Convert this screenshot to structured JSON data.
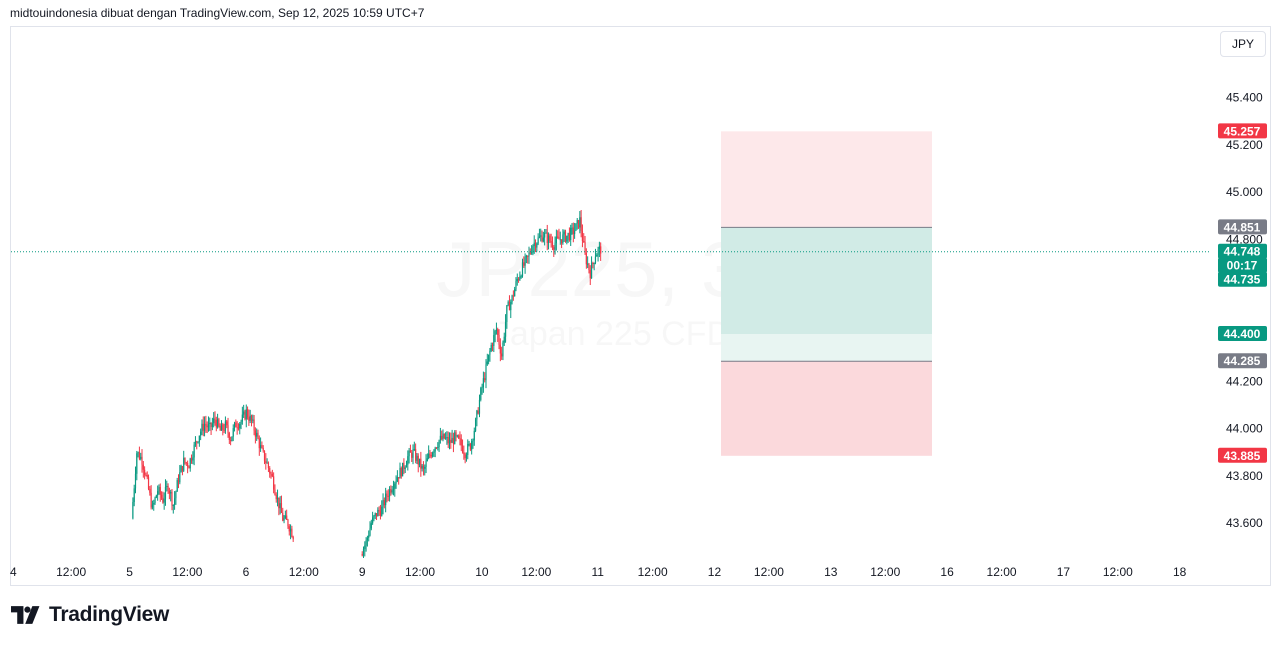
{
  "header": {
    "attribution": "midtouindonesia dibuat dengan TradingView.com, Sep 12, 2025 10:59 UTC+7"
  },
  "currency_button": {
    "label": "JPY"
  },
  "watermark": {
    "symbol": "JP225, 30",
    "description": "Japan 225 CFD"
  },
  "brand": {
    "name": "TradingView"
  },
  "colors": {
    "up": "#089981",
    "down": "#f23645",
    "grid_text": "#131722",
    "profit_zone": "#d1ebe6",
    "loss_zone": "#fbd9dc",
    "gray_label": "#787b86"
  },
  "chart_data": {
    "type": "candlestick",
    "timeframe": "30",
    "x_tick_labels": [
      "4",
      "12:00",
      "5",
      "12:00",
      "6",
      "12:00",
      "9",
      "12:00",
      "10",
      "12:00",
      "11",
      "12:00",
      "12",
      "12:00",
      "13",
      "12:00",
      "16",
      "12:00",
      "17",
      "12:00",
      "18"
    ],
    "y_tick_labels": [
      "45.400",
      "45.200",
      "45.000",
      "44.800",
      "44.200",
      "44.000",
      "43.800",
      "43.600"
    ],
    "ylim": [
      43.45,
      45.6
    ],
    "price_labels": [
      {
        "value": "45.257",
        "color": "#f23645"
      },
      {
        "value": "44.851",
        "color": "#787b86"
      },
      {
        "value": "44.748",
        "color": "#089981"
      },
      {
        "value": "00:17",
        "color": "#089981"
      },
      {
        "value": "44.735",
        "color": "#089981"
      },
      {
        "value": "44.400",
        "color": "#089981"
      },
      {
        "value": "44.285",
        "color": "#787b86"
      },
      {
        "value": "43.885",
        "color": "#f23645"
      }
    ],
    "current_price": 44.748,
    "bar_countdown": "00:17",
    "position_tool": {
      "entry": 44.851,
      "stop": 44.285,
      "outer_top": 45.257,
      "outer_bottom": 43.885,
      "tp_level": 44.4
    },
    "candles_segments": [
      {
        "start_day": 6.06,
        "closes": [
          43.62,
          43.9,
          43.87,
          43.77,
          43.66,
          43.74,
          43.7,
          43.76,
          43.68,
          43.79,
          43.86,
          43.85,
          43.92,
          43.98,
          44.02,
          44.0,
          44.04,
          43.99,
          44.01,
          43.96,
          44.02,
          44.03,
          44.07,
          44.03,
          43.97,
          43.9,
          43.85,
          43.79,
          43.7,
          43.62,
          43.6,
          43.55
        ]
      },
      {
        "start_day": 10.0,
        "closes": [
          43.47,
          43.52,
          43.6,
          43.64,
          43.66,
          43.72,
          43.76,
          43.8,
          43.83,
          43.88,
          43.9,
          43.86,
          43.82,
          43.88,
          43.92,
          43.95,
          43.96,
          43.94,
          43.96,
          43.94,
          43.9,
          43.93,
          44.02,
          44.15,
          44.25,
          44.35,
          44.42,
          44.31,
          44.5,
          44.55,
          44.63,
          44.68,
          44.72,
          44.78,
          44.8,
          44.82,
          44.8,
          44.78,
          44.8,
          44.81,
          44.82,
          44.84,
          44.88,
          44.73,
          44.66,
          44.74,
          44.76
        ]
      }
    ]
  }
}
